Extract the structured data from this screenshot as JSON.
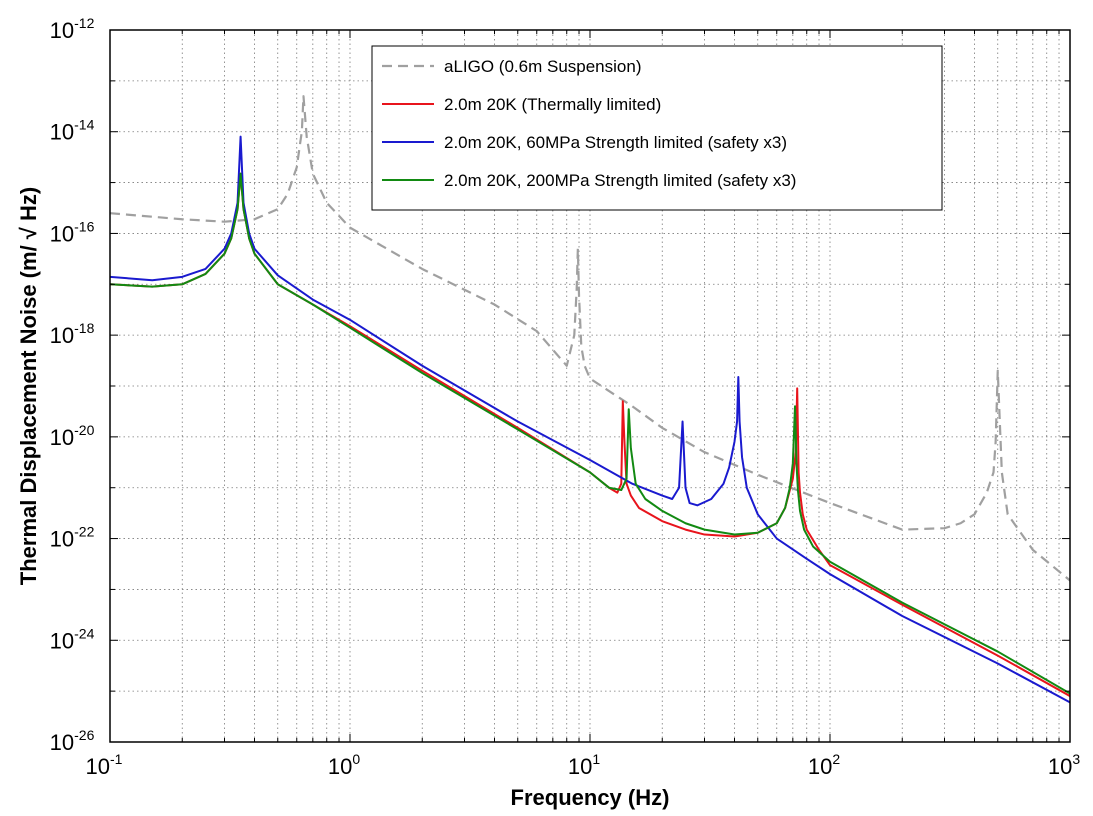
{
  "chart_data": {
    "type": "line",
    "title": "",
    "xlabel": "Frequency (Hz)",
    "ylabel": "Thermal Displacement Noise (m/ √ Hz)",
    "xscale": "log",
    "yscale": "log",
    "xlim": [
      0.1,
      1000
    ],
    "ylim": [
      1e-26,
      1e-12
    ],
    "grid": true,
    "legend_position": "top-right",
    "x_ticks": [
      {
        "base": "10",
        "exp": "-1"
      },
      {
        "base": "10",
        "exp": "0"
      },
      {
        "base": "10",
        "exp": "1"
      },
      {
        "base": "10",
        "exp": "2"
      },
      {
        "base": "10",
        "exp": "3"
      }
    ],
    "y_ticks": [
      {
        "base": "10",
        "exp": "-26"
      },
      {
        "base": "10",
        "exp": "-24"
      },
      {
        "base": "10",
        "exp": "-22"
      },
      {
        "base": "10",
        "exp": "-20"
      },
      {
        "base": "10",
        "exp": "-18"
      },
      {
        "base": "10",
        "exp": "-16"
      },
      {
        "base": "10",
        "exp": "-14"
      },
      {
        "base": "10",
        "exp": "-12"
      }
    ],
    "series": [
      {
        "name": "aLIGO (0.6m Suspension)",
        "color": "#a0a0a0",
        "dashed": true,
        "x": [
          0.1,
          0.2,
          0.3,
          0.4,
          0.5,
          0.55,
          0.6,
          0.62,
          0.63,
          0.64,
          0.66,
          0.7,
          0.8,
          1.0,
          2.0,
          4.0,
          6.0,
          8.0,
          8.6,
          8.8,
          8.9,
          9.0,
          9.2,
          9.5,
          10,
          15,
          20,
          30,
          50,
          100,
          200,
          300,
          350,
          400,
          450,
          480,
          490,
          500,
          520,
          550,
          700,
          1000
        ],
        "y": [
          2.5e-16,
          1.9e-16,
          1.7e-16,
          1.9e-16,
          3e-16,
          6e-16,
          2e-15,
          6e-15,
          1e-14,
          5e-14,
          8e-15,
          1.5e-15,
          4e-16,
          1.3e-16,
          2e-17,
          4e-18,
          1.2e-18,
          2.5e-19,
          1e-18,
          8e-18,
          5e-17,
          6e-18,
          6e-19,
          2.5e-19,
          1.4e-19,
          4e-20,
          1.5e-20,
          5e-21,
          1.8e-21,
          5e-22,
          1.5e-22,
          1.6e-22,
          2e-22,
          3e-22,
          8e-22,
          2e-21,
          8e-21,
          2e-19,
          2e-21,
          3e-22,
          6e-23,
          1.5e-23
        ]
      },
      {
        "name": "2.0m 20K (Thermally limited)",
        "color": "#e8141c",
        "dashed": false,
        "x": [
          0.1,
          0.15,
          0.2,
          0.25,
          0.3,
          0.32,
          0.34,
          0.35,
          0.36,
          0.38,
          0.4,
          0.5,
          0.7,
          1.0,
          2.0,
          5.0,
          10,
          12,
          13,
          13.5,
          13.7,
          13.9,
          14.2,
          14.8,
          16,
          20,
          25,
          30,
          40,
          50,
          60,
          65,
          70,
          72,
          73,
          74,
          75,
          77,
          80,
          90,
          100,
          200,
          500,
          1000
        ],
        "y": [
          1e-17,
          9e-18,
          1e-17,
          1.6e-17,
          4e-17,
          8e-17,
          3e-16,
          1.5e-15,
          3e-16,
          8e-17,
          4e-17,
          1e-17,
          4e-18,
          1.5e-18,
          2e-19,
          1.5e-20,
          2e-21,
          1e-21,
          8e-22,
          1.2e-21,
          5e-20,
          9e-21,
          1.2e-21,
          7e-22,
          4e-22,
          2.2e-22,
          1.5e-22,
          1.2e-22,
          1.1e-22,
          1.3e-22,
          2e-22,
          4e-22,
          1.5e-21,
          5e-21,
          9e-20,
          2e-21,
          8e-22,
          3e-22,
          1.5e-22,
          6e-23,
          3e-23,
          5e-24,
          5e-25,
          8e-26
        ]
      },
      {
        "name": "2.0m 20K, 60MPa Strength limited (safety x3)",
        "color": "#1a1acf",
        "dashed": false,
        "x": [
          0.1,
          0.15,
          0.2,
          0.25,
          0.3,
          0.32,
          0.34,
          0.35,
          0.36,
          0.38,
          0.4,
          0.5,
          0.7,
          1.0,
          2.0,
          5.0,
          10,
          15,
          20,
          22,
          23.5,
          24.3,
          25,
          26,
          28,
          32,
          36,
          38,
          40,
          41,
          41.5,
          42,
          43,
          45,
          50,
          60,
          80,
          100,
          200,
          500,
          1000
        ],
        "y": [
          1.4e-17,
          1.2e-17,
          1.4e-17,
          2e-17,
          5e-17,
          1e-16,
          4e-16,
          8e-15,
          4e-16,
          1e-16,
          5e-17,
          1.5e-17,
          5e-18,
          2e-18,
          2.5e-19,
          2e-20,
          3.5e-21,
          1.2e-21,
          7e-22,
          6e-22,
          1e-21,
          2e-20,
          1e-21,
          5e-22,
          4.5e-22,
          6e-22,
          1.2e-21,
          2.5e-21,
          8e-21,
          2e-20,
          1.5e-19,
          2e-20,
          4e-21,
          1e-21,
          3e-22,
          1e-22,
          4e-23,
          2e-23,
          3e-24,
          3.5e-25,
          6e-26
        ]
      },
      {
        "name": "2.0m 20K, 200MPa Strength limited (safety x3)",
        "color": "#128a12",
        "dashed": false,
        "x": [
          0.1,
          0.15,
          0.2,
          0.25,
          0.3,
          0.32,
          0.34,
          0.35,
          0.36,
          0.38,
          0.4,
          0.5,
          0.7,
          1.0,
          2.0,
          5.0,
          10,
          12,
          13.5,
          14.2,
          14.5,
          14.8,
          15.5,
          17,
          20,
          25,
          30,
          40,
          50,
          60,
          65,
          68,
          70,
          71.5,
          72.5,
          73.5,
          75,
          78,
          85,
          100,
          200,
          500,
          1000
        ],
        "y": [
          1e-17,
          9e-18,
          1e-17,
          1.6e-17,
          4e-17,
          8e-17,
          3e-16,
          1.5e-15,
          3e-16,
          8e-17,
          4e-17,
          1e-17,
          4e-18,
          1.4e-18,
          1.8e-19,
          1.4e-20,
          2e-21,
          1e-21,
          9e-22,
          1.5e-21,
          3.5e-20,
          6e-21,
          1.2e-21,
          6e-22,
          3.5e-22,
          2e-22,
          1.5e-22,
          1.2e-22,
          1.3e-22,
          2e-22,
          4e-22,
          1e-21,
          3e-21,
          4e-20,
          3e-21,
          9e-22,
          3.5e-22,
          1.5e-22,
          7e-23,
          3.5e-23,
          5.5e-24,
          6e-25,
          9e-26
        ]
      }
    ]
  }
}
